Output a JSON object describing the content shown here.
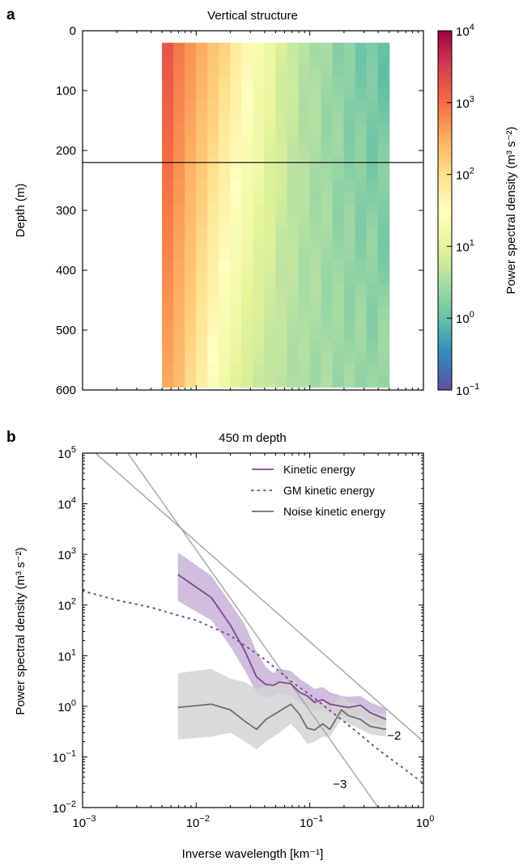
{
  "chart_data": [
    {
      "panel_label": "a",
      "type": "heatmap",
      "title": "Vertical structure",
      "xlabel": "",
      "ylabel": "Depth (m)",
      "x_scale": "log",
      "xlim": [
        0.001,
        1
      ],
      "ylim": [
        0,
        600
      ],
      "y_inverted": true,
      "yticks": [
        0,
        100,
        200,
        300,
        400,
        500,
        600
      ],
      "x_tick_labels_shown": false,
      "x_start": 0.005,
      "x_end": 0.5,
      "depth_start": 20,
      "depth_end": 595,
      "rows": 30,
      "columns": 20,
      "horizontal_line_depth": 220,
      "colorbar": {
        "label": "Power spectral density (m³ s⁻²)",
        "scale": "log",
        "range": [
          0.1,
          10000
        ],
        "ticks": [
          {
            "base": "10",
            "exp": "4"
          },
          {
            "base": "10",
            "exp": "3"
          },
          {
            "base": "10",
            "exp": "2"
          },
          {
            "base": "10",
            "exp": "1"
          },
          {
            "base": "10",
            "exp": "0"
          },
          {
            "base": "10",
            "exp": "−1"
          }
        ]
      },
      "colors": [
        "#5e4fa2",
        "#3288bd",
        "#66c2a5",
        "#abdda4",
        "#e6f598",
        "#ffffbf",
        "#fee08b",
        "#fdae61",
        "#f46d43",
        "#d53e4f",
        "#9e0142"
      ],
      "column_log_psd_surface": [
        3.25,
        2.9,
        2.7,
        2.5,
        2.3,
        2.1,
        1.85,
        1.6,
        1.35,
        1.1,
        0.9,
        0.75,
        0.6,
        0.5,
        0.4,
        0.3,
        0.22,
        0.15,
        0.1,
        0.05
      ],
      "column_log_psd_deep": [
        2.55,
        2.35,
        2.05,
        1.75,
        1.45,
        1.2,
        1.0,
        0.85,
        0.75,
        0.7,
        0.62,
        0.55,
        0.5,
        0.48,
        0.45,
        0.43,
        0.4,
        0.38,
        0.36,
        0.35
      ]
    },
    {
      "panel_label": "b",
      "type": "line",
      "title": "450 m depth",
      "xlabel": "Inverse wavelength [km⁻¹]",
      "ylabel": "Power spectral density (m³ s⁻²)",
      "x_scale": "log",
      "y_scale": "log",
      "xlim": [
        0.001,
        1
      ],
      "ylim": [
        0.01,
        100000
      ],
      "xticks": [
        {
          "base": "10",
          "exp": "−3"
        },
        {
          "base": "10",
          "exp": "−2"
        },
        {
          "base": "10",
          "exp": "−1"
        },
        {
          "base": "10",
          "exp": "0"
        }
      ],
      "yticks": [
        {
          "base": "10",
          "exp": "5"
        },
        {
          "base": "10",
          "exp": "4"
        },
        {
          "base": "10",
          "exp": "3"
        },
        {
          "base": "10",
          "exp": "2"
        },
        {
          "base": "10",
          "exp": "1"
        },
        {
          "base": "10",
          "exp": "0"
        },
        {
          "base": "10",
          "exp": "−1"
        },
        {
          "base": "10",
          "exp": "−2"
        }
      ],
      "legend_position": "top-right",
      "series": [
        {
          "name": "Kinetic energy",
          "color": "#7b4a8f",
          "style": "solid",
          "x": [
            0.0069,
            0.0136,
            0.02,
            0.027,
            0.034,
            0.041,
            0.048,
            0.054,
            0.068,
            0.081,
            0.095,
            0.11,
            0.13,
            0.15,
            0.19,
            0.22,
            0.28,
            0.34,
            0.47
          ],
          "y": [
            400,
            140,
            40,
            12,
            3.8,
            2.7,
            2.6,
            3.0,
            2.8,
            1.9,
            1.6,
            1.2,
            1.35,
            1.1,
            1.0,
            0.95,
            1.05,
            0.75,
            0.55
          ],
          "band_upper": [
            1100,
            380,
            110,
            40,
            12,
            6,
            4.5,
            5.5,
            5,
            3.5,
            2.8,
            2.2,
            2.4,
            1.9,
            1.6,
            1.55,
            1.6,
            1.2,
            0.9
          ],
          "band_lower": [
            120,
            50,
            15,
            5,
            1.8,
            1.5,
            1.6,
            1.8,
            1.6,
            1.2,
            1.0,
            0.8,
            0.85,
            0.72,
            0.65,
            0.6,
            0.65,
            0.5,
            0.4
          ]
        },
        {
          "name": "GM kinetic energy",
          "color": "#7b4a8f",
          "style": "dotted",
          "x": [
            0.001,
            0.002,
            0.004,
            0.007,
            0.01,
            0.02,
            0.04,
            0.07,
            0.1,
            0.2,
            0.4,
            0.7,
            1.0
          ],
          "y": [
            190,
            125,
            90,
            62,
            50,
            25,
            8.5,
            3.0,
            1.7,
            0.5,
            0.14,
            0.055,
            0.03
          ]
        },
        {
          "name": "Noise kinetic energy",
          "color": "#6e6e6e",
          "style": "solid",
          "x": [
            0.0069,
            0.0136,
            0.02,
            0.027,
            0.034,
            0.041,
            0.054,
            0.068,
            0.081,
            0.095,
            0.11,
            0.13,
            0.15,
            0.19,
            0.22,
            0.28,
            0.34,
            0.47
          ],
          "y": [
            0.95,
            1.1,
            0.85,
            0.5,
            0.35,
            0.55,
            0.8,
            1.1,
            0.7,
            0.37,
            0.34,
            0.45,
            0.35,
            0.85,
            0.65,
            0.55,
            0.4,
            0.35
          ],
          "band_upper": [
            4.5,
            5.5,
            3.5,
            3,
            2.2,
            2.5,
            3,
            3.8,
            2.5,
            1.4,
            1.1,
            1.4,
            0.9,
            1.6,
            1.2,
            1.1,
            0.8,
            0.7
          ],
          "band_lower": [
            0.22,
            0.25,
            0.3,
            0.2,
            0.14,
            0.2,
            0.3,
            0.45,
            0.3,
            0.18,
            0.2,
            0.25,
            0.25,
            0.55,
            0.45,
            0.35,
            0.28,
            0.25
          ]
        }
      ],
      "reference_lines": [
        {
          "label": "−2",
          "slope": -2,
          "x": [
            0.0013,
            1
          ],
          "y": [
            100000,
            0.2
          ]
        },
        {
          "label": "−3",
          "slope": -3,
          "x": [
            0.0025,
            0.4
          ],
          "y": [
            100000,
            0.01
          ]
        }
      ]
    }
  ]
}
